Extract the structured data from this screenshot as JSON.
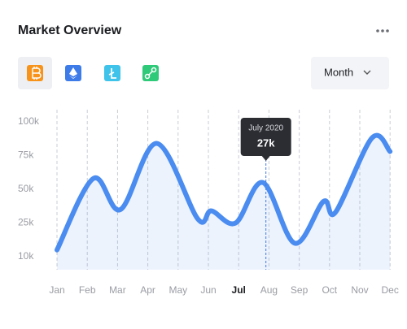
{
  "header": {
    "title": "Market Overview"
  },
  "dropdown": {
    "label": "Month"
  },
  "chart_data": {
    "type": "line",
    "categories": [
      "Jan",
      "Feb",
      "Mar",
      "Apr",
      "May",
      "Jun",
      "Jul",
      "Aug",
      "Sep",
      "Oct",
      "Nov",
      "Dec"
    ],
    "highlight_index": 6,
    "series": [
      {
        "color": "#4a8cf0",
        "x": [
          0,
          1.2,
          2.1,
          3.3,
          4.65,
          5.1,
          5.9,
          6.8,
          7.85,
          8.8,
          9.2,
          10.4,
          11
        ],
        "values": [
          13,
          58,
          35,
          84,
          28,
          34,
          25,
          55,
          16,
          41,
          33,
          88,
          78
        ]
      }
    ],
    "ylim": [
      10,
      100
    ],
    "yticks": [
      {
        "value": 10,
        "label": "10k"
      },
      {
        "value": 25,
        "label": "25k"
      },
      {
        "value": 50,
        "label": "50k"
      },
      {
        "value": 75,
        "label": "75k"
      },
      {
        "value": 100,
        "label": "100k"
      }
    ],
    "grid": true,
    "tooltip": {
      "title": "July 2020",
      "x": 6.9,
      "value": 27,
      "label": "27k"
    }
  }
}
